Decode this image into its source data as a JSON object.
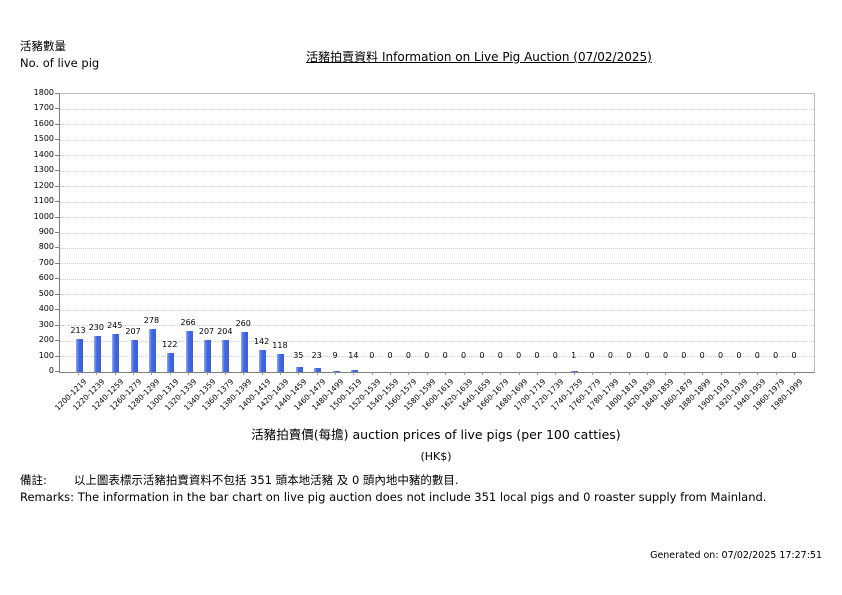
{
  "header": {
    "label_zh": "活豬數量",
    "label_en": "No. of live pig"
  },
  "title": "活豬拍賣資料 Information on Live Pig Auction (07/02/2025)",
  "xaxis": {
    "title": "活豬拍賣價(每擔) auction prices of live pigs (per 100 catties)",
    "unit": "(HK$)"
  },
  "remarks": {
    "label_zh": "備註:",
    "text_zh": "以上圖表標示活豬拍賣資料不包括 351 頭本地活豬 及 0 頭內地中豬的數目.",
    "line_en": "Remarks: The information in the bar chart on live pig auction does not include 351 local pigs and 0 roaster supply from Mainland."
  },
  "footer": {
    "generated": "Generated on: 07/02/2025 17:27:51"
  },
  "chart_data": {
    "type": "bar",
    "title": "活豬拍賣資料 Information on Live Pig Auction (07/02/2025)",
    "xlabel": "活豬拍賣價(每擔) auction prices of live pigs (per 100 catties) (HK$)",
    "ylabel": "活豬數量 No. of live pig",
    "ylim": [
      0,
      1800
    ],
    "ytick_step": 100,
    "grid": true,
    "legend": false,
    "bar_color": "#4169E1",
    "categories": [
      "1200-1219",
      "1220-1239",
      "1240-1259",
      "1260-1279",
      "1280-1299",
      "1300-1319",
      "1320-1339",
      "1340-1359",
      "1360-1379",
      "1380-1399",
      "1400-1419",
      "1420-1439",
      "1440-1459",
      "1460-1479",
      "1480-1499",
      "1500-1519",
      "1520-1539",
      "1540-1559",
      "1560-1579",
      "1580-1599",
      "1600-1619",
      "1620-1639",
      "1640-1659",
      "1660-1679",
      "1680-1699",
      "1700-1719",
      "1720-1739",
      "1740-1759",
      "1760-1779",
      "1780-1799",
      "1800-1819",
      "1820-1839",
      "1840-1859",
      "1860-1879",
      "1880-1899",
      "1900-1919",
      "1920-1939",
      "1940-1959",
      "1960-1979",
      "1980-1999"
    ],
    "values": [
      213,
      230,
      245,
      207,
      278,
      122,
      266,
      207,
      204,
      260,
      142,
      118,
      35,
      23,
      9,
      14,
      0,
      0,
      0,
      0,
      0,
      0,
      0,
      0,
      0,
      0,
      0,
      1,
      0,
      0,
      0,
      0,
      0,
      0,
      0,
      0,
      0,
      0,
      0,
      0
    ]
  }
}
